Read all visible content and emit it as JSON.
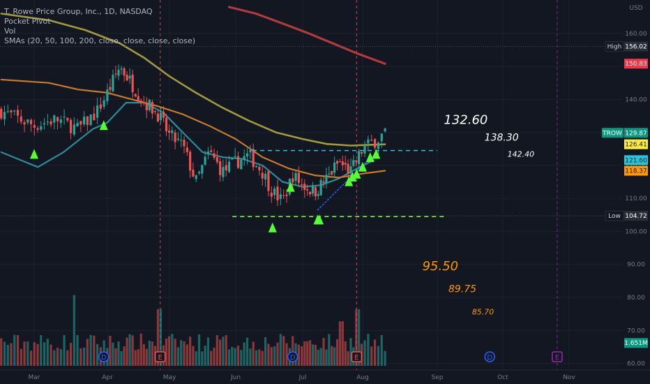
{
  "legend": {
    "symbol": "T. Rowe Price Group, Inc., 1D, NASDAQ",
    "ind1": "Pocket Pivot",
    "ind2": "Vol",
    "ind3": "SMAs (20, 50, 100, 200, close, close, close, close)"
  },
  "colors": {
    "background": "#131722",
    "up": "#26a69a",
    "down": "#ef5350",
    "sma20": "#2a8c9c",
    "sma50": "#c97b2a",
    "sma100": "#a39a3c",
    "sma200": "#b33a3a",
    "pivot": "#55ff33",
    "target_white": "#ffffff",
    "target_orange": "#ff9800"
  },
  "chart_data": {
    "type": "candlestick",
    "y_axis_unit": "USD",
    "ylim": [
      58,
      168
    ],
    "y_ticks": [
      160,
      150,
      140,
      130,
      120,
      110,
      100,
      90,
      80,
      70,
      60
    ],
    "x_months": [
      "Mar",
      "Apr",
      "May",
      "Jun",
      "Jul",
      "Aug",
      "Sep",
      "Oct",
      "Nov"
    ],
    "price_labels": [
      {
        "label": "High",
        "value": "156.02",
        "y": 156.02,
        "bg": "#131722",
        "fg": "#ffffff",
        "kind": "marker"
      },
      {
        "label": "",
        "value": "150.83",
        "y": 150.83,
        "bg": "#f23645",
        "fg": "#ffffff",
        "kind": "tag"
      },
      {
        "label": "TROW",
        "value": "129.87",
        "y": 129.87,
        "bg": "#089981",
        "fg": "#ffffff",
        "kind": "tag"
      },
      {
        "label": "",
        "value": "126.41",
        "y": 126.41,
        "bg": "#ffeb3b",
        "fg": "#131722",
        "kind": "tag"
      },
      {
        "label": "",
        "value": "121.60",
        "y": 121.6,
        "bg": "#26c6da",
        "fg": "#131722",
        "kind": "tag"
      },
      {
        "label": "",
        "value": "118.37",
        "y": 118.37,
        "bg": "#ff9800",
        "fg": "#131722",
        "kind": "tag"
      },
      {
        "label": "Low",
        "value": "104.72",
        "y": 104.72,
        "bg": "#131722",
        "fg": "#ffffff",
        "kind": "marker"
      },
      {
        "label": "",
        "value": "1.651M",
        "y": 66.2,
        "bg": "#089981",
        "fg": "#ffffff",
        "kind": "tag"
      }
    ],
    "targets": [
      {
        "text": "132.60",
        "price": 132.6,
        "at_month": 6.1,
        "color": "white",
        "size": "large"
      },
      {
        "text": "138.30",
        "price": 127.5,
        "at_month": 6.72,
        "color": "white",
        "size": "medium"
      },
      {
        "text": "142.40",
        "price": 122.6,
        "at_month": 7.07,
        "color": "white",
        "size": "small"
      },
      {
        "text": "95.50",
        "price": 88.2,
        "at_month": 5.8,
        "color": "orange",
        "size": "large"
      },
      {
        "text": "89.75",
        "price": 81.6,
        "at_month": 6.17,
        "color": "orange",
        "size": "medium"
      },
      {
        "text": "85.70",
        "price": 74.8,
        "at_month": 6.53,
        "color": "orange",
        "size": "small"
      }
    ],
    "levels": [
      {
        "price": 124.5,
        "from_month": 3.25,
        "to_month": 6.0,
        "color": "#26c6da"
      },
      {
        "price": 104.5,
        "from_month": 2.95,
        "to_month": 6.1,
        "color": "#76ff03"
      }
    ],
    "events": [
      {
        "type": "dividend",
        "label": "D",
        "at_month": 0.95
      },
      {
        "type": "earnings",
        "label": "E",
        "at_month": 1.85
      },
      {
        "type": "dividend",
        "label": "D",
        "at_month": 3.85
      },
      {
        "type": "earnings",
        "label": "E",
        "at_month": 4.9
      },
      {
        "type": "dividend",
        "label": "D",
        "at_month": 6.8
      },
      {
        "type": "earnings",
        "label": "E",
        "at_month": 7.82
      }
    ],
    "vlines": [
      1.85,
      4.9,
      7.82
    ],
    "pivot_markers": [
      {
        "at_month": 0.0,
        "price": 123.5
      },
      {
        "at_month": 0.95,
        "price": 132.2
      },
      {
        "at_month": 3.55,
        "price": 101.2
      },
      {
        "at_month": 3.82,
        "price": 113.5
      },
      {
        "at_month": 4.25,
        "price": 103.6
      },
      {
        "at_month": 4.28,
        "price": 103.6
      },
      {
        "at_month": 4.77,
        "price": 115.2
      },
      {
        "at_month": 4.83,
        "price": 116.6
      },
      {
        "at_month": 4.9,
        "price": 117.5
      },
      {
        "at_month": 5.0,
        "price": 119.6
      },
      {
        "at_month": 5.1,
        "price": 122.5
      },
      {
        "at_month": 5.18,
        "price": 123.5
      }
    ]
  }
}
